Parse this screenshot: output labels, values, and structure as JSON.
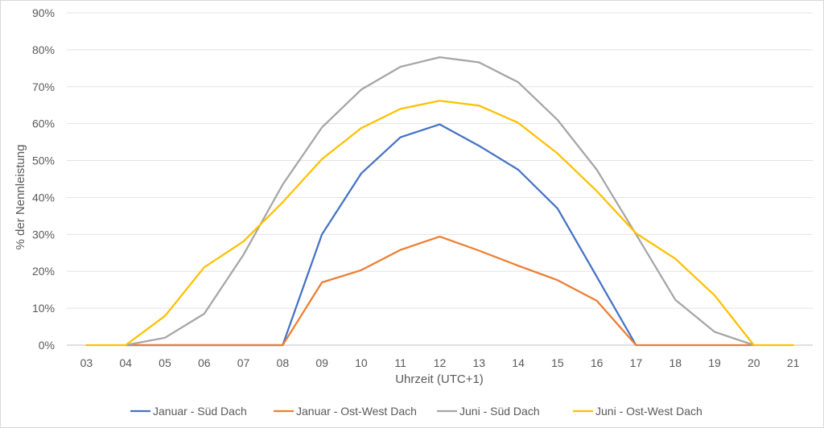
{
  "chart_data": {
    "type": "line",
    "title": "",
    "xlabel": "Uhrzeit (UTC+1)",
    "ylabel": "% der Nennleistung",
    "categories": [
      "03",
      "04",
      "05",
      "06",
      "07",
      "08",
      "09",
      "10",
      "11",
      "12",
      "13",
      "14",
      "15",
      "16",
      "17",
      "18",
      "19",
      "20",
      "21"
    ],
    "ylim": [
      0,
      90
    ],
    "yticks": [
      0,
      10,
      20,
      30,
      40,
      50,
      60,
      70,
      80,
      90
    ],
    "ytick_labels": [
      "0%",
      "10%",
      "20%",
      "30%",
      "40%",
      "50%",
      "60%",
      "70%",
      "80%",
      "90%"
    ],
    "grid": true,
    "legend_position": "bottom",
    "series": [
      {
        "name": "Januar - Süd Dach",
        "color": "#4472c4",
        "values": [
          null,
          0,
          0,
          0,
          0,
          0,
          30,
          46.5,
          56.3,
          59.8,
          54.0,
          47.5,
          37.0,
          18.5,
          0,
          null,
          null,
          null,
          null
        ]
      },
      {
        "name": "Januar - Ost-West Dach",
        "color": "#ed7d31",
        "values": [
          null,
          0,
          0,
          0,
          0,
          0,
          17.0,
          20.3,
          25.8,
          29.4,
          25.6,
          21.5,
          17.6,
          12.0,
          0,
          0,
          0,
          0,
          null
        ]
      },
      {
        "name": "Juni - Süd Dach",
        "color": "#a5a5a5",
        "values": [
          null,
          0,
          2.0,
          8.5,
          24.5,
          43.5,
          59.0,
          69.2,
          75.4,
          78.0,
          76.6,
          71.2,
          61.0,
          47.5,
          30.0,
          12.3,
          3.6,
          0,
          null
        ]
      },
      {
        "name": "Juni - Ost-West Dach",
        "color": "#ffc000",
        "values": [
          0,
          0,
          7.9,
          21.1,
          28.1,
          38.7,
          50.4,
          58.8,
          64.0,
          66.2,
          64.9,
          60.2,
          51.9,
          41.7,
          30.3,
          23.4,
          13.5,
          0,
          0
        ]
      }
    ]
  }
}
